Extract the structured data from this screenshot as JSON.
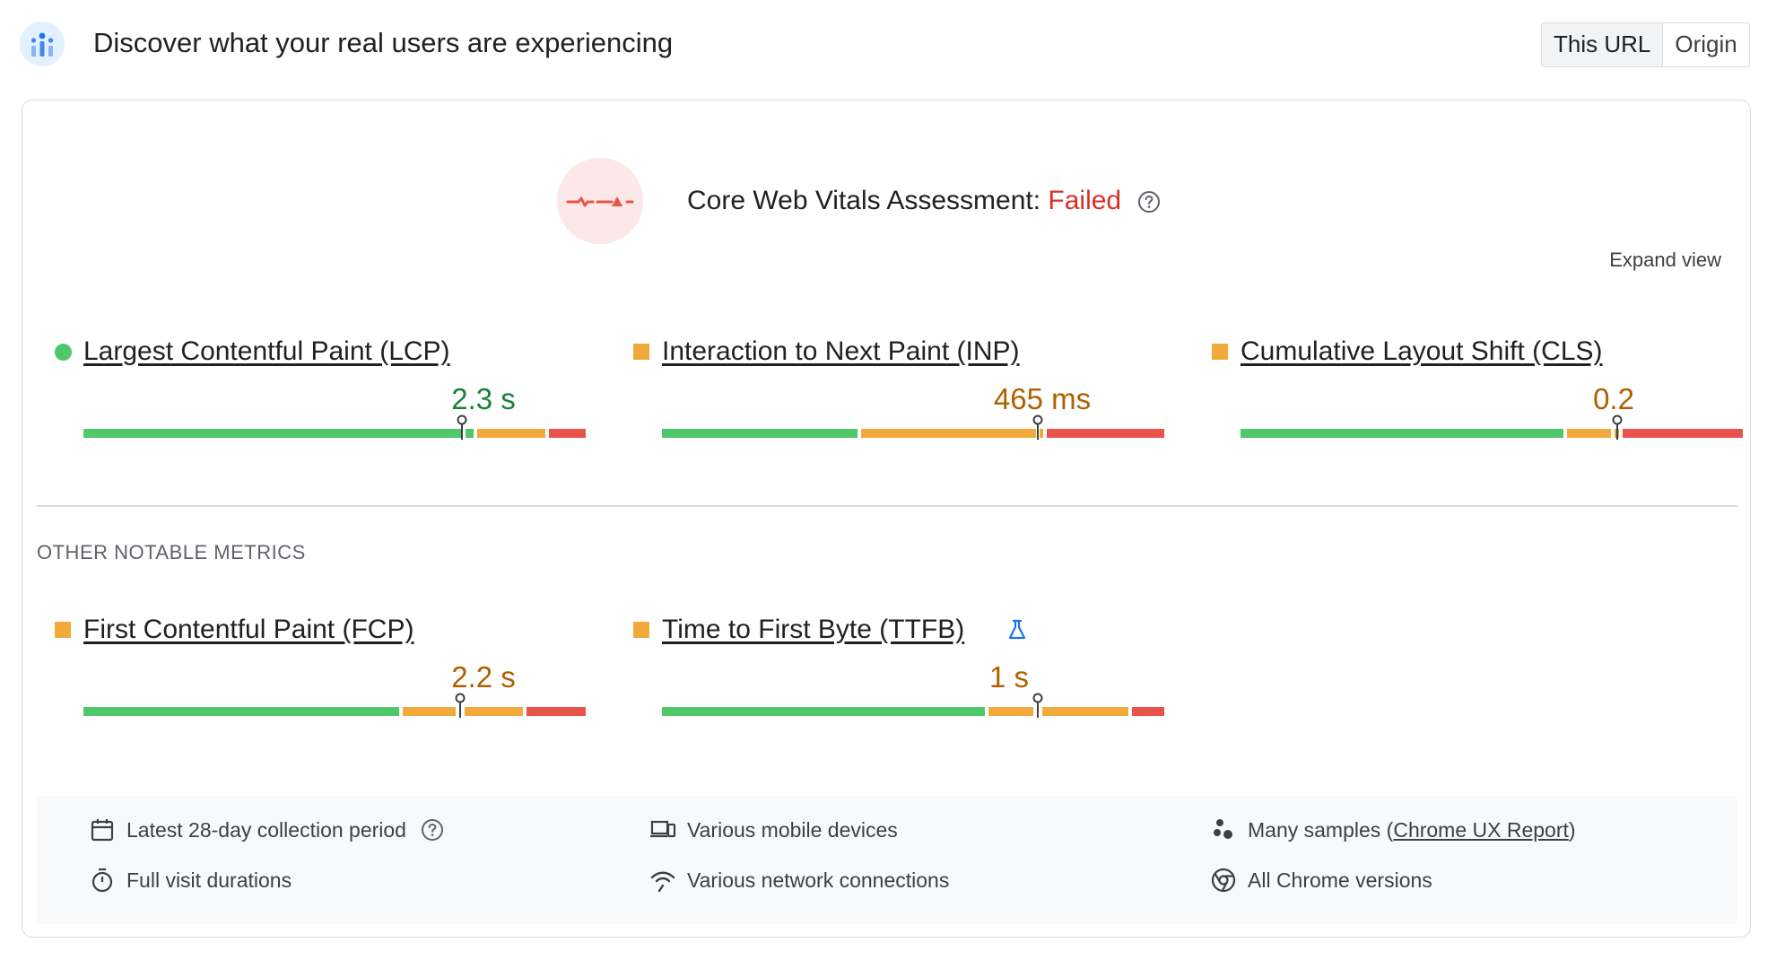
{
  "header": {
    "title": "Discover what your real users are experiencing",
    "toggle": {
      "this_url": "This URL",
      "origin": "Origin",
      "selected": "This URL"
    }
  },
  "assessment": {
    "label": "Core Web Vitals Assessment:",
    "status": "Failed",
    "expand": "Expand view"
  },
  "core_metrics": [
    {
      "name": "Largest Contentful Paint (LCP)",
      "value": "2.3 s",
      "rating": "good"
    },
    {
      "name": "Interaction to Next Paint (INP)",
      "value": "465 ms",
      "rating": "needs-improvement"
    },
    {
      "name": "Cumulative Layout Shift (CLS)",
      "value": "0.2",
      "rating": "needs-improvement"
    }
  ],
  "other": {
    "label": "OTHER NOTABLE METRICS",
    "metrics": [
      {
        "name": "First Contentful Paint (FCP)",
        "value": "2.2 s",
        "rating": "needs-improvement"
      },
      {
        "name": "Time to First Byte (TTFB)",
        "value": "1 s",
        "rating": "needs-improvement",
        "experimental": true
      }
    ]
  },
  "footer": {
    "collection_period": "Latest 28-day collection period",
    "visit_durations": "Full visit durations",
    "devices": "Various mobile devices",
    "network": "Various network connections",
    "samples_prefix": "Many samples (",
    "samples_link": "Chrome UX Report",
    "samples_suffix": ")",
    "chrome_versions": "All Chrome versions"
  },
  "colors": {
    "good": "#4fc76b",
    "needs_improvement": "#f2a93b",
    "poor": "#e8544b",
    "failed_text": "#d93025",
    "good_text": "#188038",
    "ni_text": "#b06000"
  }
}
